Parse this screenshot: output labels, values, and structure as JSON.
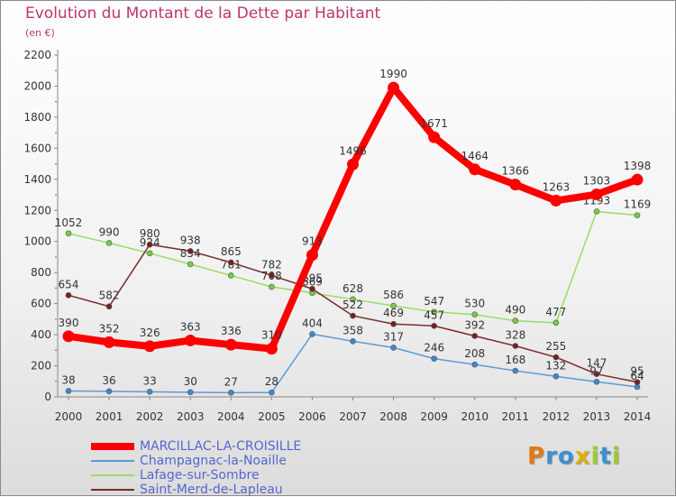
{
  "title": "Evolution du Montant de la Dette par Habitant",
  "subtitle": "(en €)",
  "chart_data": {
    "type": "line",
    "title": "Evolution du Montant de la Dette par Habitant",
    "subtitle": "(en €)",
    "xlabel": "",
    "ylabel": "",
    "ylim": [
      0,
      2200
    ],
    "y_ticks": [
      0,
      200,
      400,
      600,
      800,
      1000,
      1200,
      1400,
      1600,
      1800,
      2000,
      2200
    ],
    "grid": false,
    "legend_position": "bottom-left",
    "x": [
      2000,
      2001,
      2002,
      2003,
      2004,
      2005,
      2006,
      2007,
      2008,
      2009,
      2010,
      2011,
      2012,
      2013,
      2014
    ],
    "series": [
      {
        "name": "MARCILLAC-LA-CROISILLE",
        "color": "#ff0000",
        "marker_color": "#ff0000",
        "values": [
          390,
          352,
          326,
          363,
          336,
          310,
          913,
          1496,
          1990,
          1671,
          1464,
          1366,
          1263,
          1303,
          1398
        ]
      },
      {
        "name": "Champagnac-la-Noaille",
        "color": "#5b9bd5",
        "marker_color": "#3f87d1",
        "values": [
          38,
          36,
          33,
          30,
          27,
          28,
          404,
          358,
          317,
          246,
          208,
          168,
          132,
          97,
          64
        ]
      },
      {
        "name": "Lafage-sur-Sombre",
        "color": "#99dd66",
        "marker_color": "#77cc44",
        "values": [
          1052,
          990,
          924,
          854,
          781,
          708,
          669,
          628,
          586,
          547,
          530,
          490,
          477,
          1193,
          1169
        ]
      },
      {
        "name": "Saint-Merd-de-Lapleau",
        "color": "#7a2b2b",
        "marker_color": "#7a1f1f",
        "values": [
          654,
          582,
          980,
          938,
          865,
          782,
          695,
          522,
          469,
          457,
          392,
          328,
          255,
          147,
          95
        ]
      }
    ]
  },
  "logo": {
    "letters": [
      "P",
      "r",
      "o",
      "x",
      "i",
      "t",
      "i"
    ],
    "colors": [
      "#e07a10",
      "#3d8fd0",
      "#3d8fd0",
      "#e0b000",
      "#9acd32",
      "#3d8fd0",
      "#9acd32"
    ]
  }
}
